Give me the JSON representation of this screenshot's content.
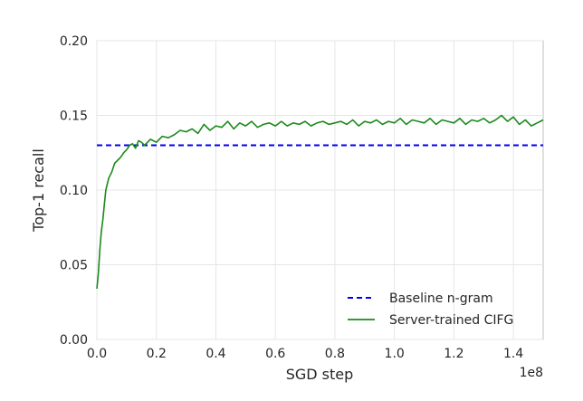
{
  "chart_data": {
    "type": "line",
    "title": "",
    "xlabel": "SGD step",
    "ylabel": "Top-1 recall",
    "x_offset_label": "1e8",
    "xlim": [
      0,
      1.5
    ],
    "ylim": [
      0,
      0.2
    ],
    "xticks": [
      0.0,
      0.2,
      0.4,
      0.6,
      0.8,
      1.0,
      1.2,
      1.4
    ],
    "xtick_labels": [
      "0.0",
      "0.2",
      "0.4",
      "0.6",
      "0.8",
      "1.0",
      "1.2",
      "1.4"
    ],
    "yticks": [
      0.0,
      0.05,
      0.1,
      0.15,
      0.2
    ],
    "ytick_labels": [
      "0.00",
      "0.05",
      "0.10",
      "0.15",
      "0.20"
    ],
    "grid": true,
    "legend_position": "bottom-right",
    "series": [
      {
        "name": "Baseline n-gram",
        "color": "#0000ee",
        "style": "dashed",
        "x": [
          0.0,
          1.5
        ],
        "y": [
          0.13,
          0.13
        ]
      },
      {
        "name": "Server-trained CIFG",
        "color": "#1a8a1a",
        "style": "solid",
        "x": [
          0.0,
          0.005,
          0.01,
          0.015,
          0.02,
          0.025,
          0.03,
          0.035,
          0.04,
          0.05,
          0.06,
          0.07,
          0.08,
          0.09,
          0.1,
          0.11,
          0.12,
          0.13,
          0.14,
          0.15,
          0.16,
          0.18,
          0.2,
          0.22,
          0.24,
          0.26,
          0.28,
          0.3,
          0.32,
          0.34,
          0.36,
          0.38,
          0.4,
          0.42,
          0.44,
          0.46,
          0.48,
          0.5,
          0.52,
          0.54,
          0.56,
          0.58,
          0.6,
          0.62,
          0.64,
          0.66,
          0.68,
          0.7,
          0.72,
          0.74,
          0.76,
          0.78,
          0.8,
          0.82,
          0.84,
          0.86,
          0.88,
          0.9,
          0.92,
          0.94,
          0.96,
          0.98,
          1.0,
          1.02,
          1.04,
          1.06,
          1.08,
          1.1,
          1.12,
          1.14,
          1.16,
          1.18,
          1.2,
          1.22,
          1.24,
          1.26,
          1.28,
          1.3,
          1.32,
          1.34,
          1.36,
          1.38,
          1.4,
          1.42,
          1.44,
          1.46,
          1.48,
          1.5
        ],
        "y": [
          0.034,
          0.044,
          0.06,
          0.072,
          0.08,
          0.09,
          0.1,
          0.104,
          0.108,
          0.112,
          0.118,
          0.12,
          0.122,
          0.125,
          0.127,
          0.13,
          0.131,
          0.128,
          0.133,
          0.132,
          0.13,
          0.134,
          0.132,
          0.136,
          0.135,
          0.137,
          0.14,
          0.139,
          0.141,
          0.138,
          0.144,
          0.14,
          0.143,
          0.142,
          0.146,
          0.141,
          0.145,
          0.143,
          0.146,
          0.142,
          0.144,
          0.145,
          0.143,
          0.146,
          0.143,
          0.145,
          0.144,
          0.146,
          0.143,
          0.145,
          0.146,
          0.144,
          0.145,
          0.146,
          0.144,
          0.147,
          0.143,
          0.146,
          0.145,
          0.147,
          0.144,
          0.146,
          0.145,
          0.148,
          0.144,
          0.147,
          0.146,
          0.145,
          0.148,
          0.144,
          0.147,
          0.146,
          0.145,
          0.148,
          0.144,
          0.147,
          0.146,
          0.148,
          0.145,
          0.147,
          0.15,
          0.146,
          0.149,
          0.144,
          0.147,
          0.143,
          0.145,
          0.147
        ]
      }
    ]
  }
}
